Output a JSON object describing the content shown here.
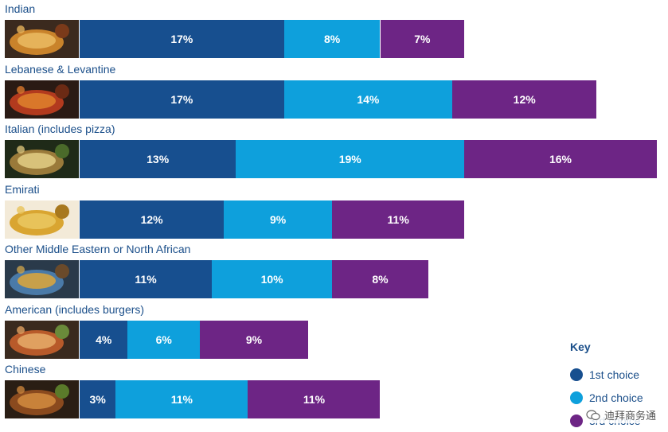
{
  "chart_data": {
    "type": "bar",
    "orientation": "horizontal",
    "stacked": true,
    "categories": [
      "Indian",
      "Lebanese & Levantine",
      "Italian (includes pizza)",
      "Emirati",
      "Other Middle Eastern or North African",
      "American (includes burgers)",
      "Chinese"
    ],
    "series": [
      {
        "name": "1st choice",
        "color": "#174f8f",
        "values": [
          17,
          17,
          13,
          12,
          11,
          4,
          3
        ]
      },
      {
        "name": "2nd choice",
        "color": "#0ea0dc",
        "values": [
          8,
          14,
          19,
          9,
          10,
          6,
          11
        ]
      },
      {
        "name": "3rd choice",
        "color": "#6d2585",
        "values": [
          7,
          12,
          16,
          11,
          8,
          9,
          11
        ]
      }
    ],
    "value_suffix": "%"
  },
  "key": {
    "title": "Key",
    "items": [
      "1st choice",
      "2nd choice",
      "3rd choice"
    ]
  },
  "watermark": "迪拜商务通",
  "colors": {
    "label_text": "#1b4f8a",
    "first": "#174f8f",
    "second": "#0ea0dc",
    "third": "#6d2585"
  }
}
